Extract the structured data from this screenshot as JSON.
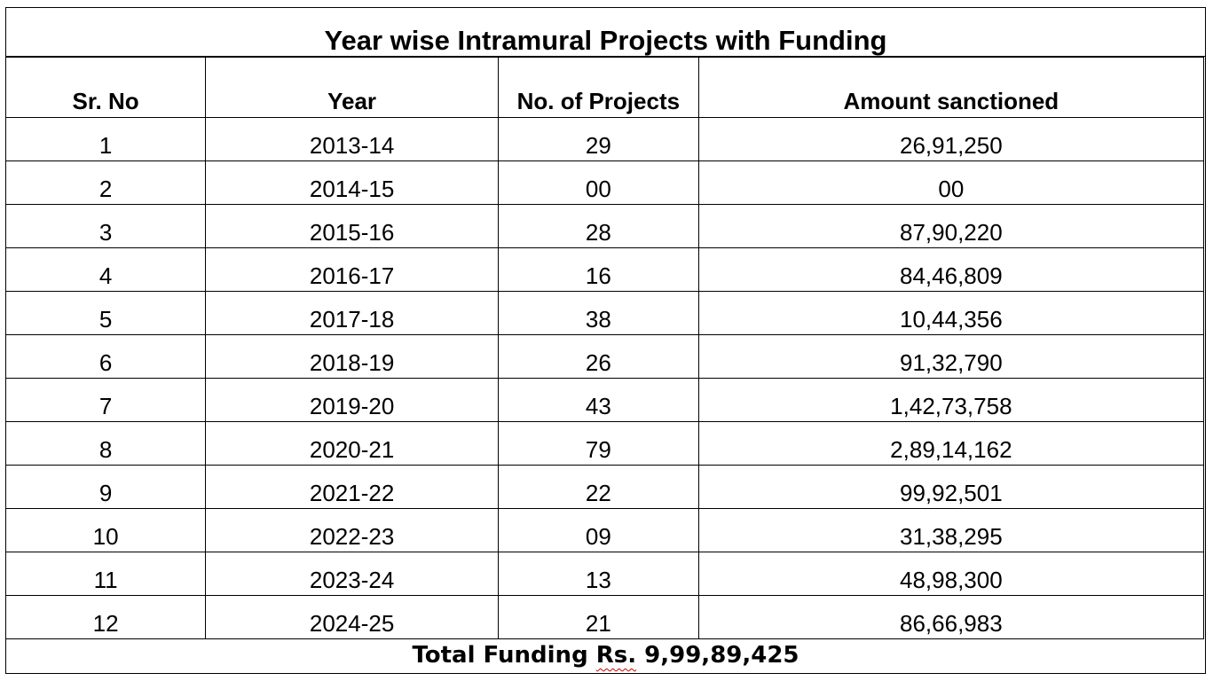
{
  "title": "Year wise Intramural Projects with Funding",
  "columns": [
    "Sr. No",
    "Year",
    "No. of Projects",
    "Amount sanctioned"
  ],
  "rows": [
    {
      "sr": "1",
      "year": "2013-14",
      "projects": "29",
      "amount": "26,91,250"
    },
    {
      "sr": "2",
      "year": "2014-15",
      "projects": "00",
      "amount": "00"
    },
    {
      "sr": "3",
      "year": "2015-16",
      "projects": "28",
      "amount": "87,90,220"
    },
    {
      "sr": "4",
      "year": "2016-17",
      "projects": "16",
      "amount": "84,46,809"
    },
    {
      "sr": "5",
      "year": "2017-18",
      "projects": "38",
      "amount": "10,44,356"
    },
    {
      "sr": "6",
      "year": "2018-19",
      "projects": "26",
      "amount": "91,32,790"
    },
    {
      "sr": "7",
      "year": "2019-20",
      "projects": "43",
      "amount": "1,42,73,758"
    },
    {
      "sr": "8",
      "year": "2020-21",
      "projects": "79",
      "amount": "2,89,14,162"
    },
    {
      "sr": "9",
      "year": "2021-22",
      "projects": "22",
      "amount": "99,92,501"
    },
    {
      "sr": "10",
      "year": "2022-23",
      "projects": "09",
      "amount": "31,38,295"
    },
    {
      "sr": "11",
      "year": "2023-24",
      "projects": "13",
      "amount": "48,98,300"
    },
    {
      "sr": "12",
      "year": "2024-25",
      "projects": "21",
      "amount": "86,66,983"
    }
  ],
  "total": {
    "prefix": "Total Funding ",
    "currency": "Rs.",
    "amount": " 9,99,89,425"
  }
}
